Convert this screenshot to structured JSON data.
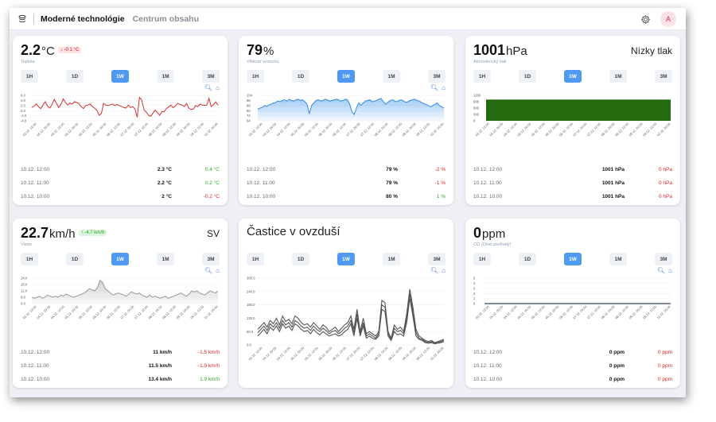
{
  "header": {
    "app_title": "Moderné technológie",
    "subtitle": "Centrum obsahu",
    "avatar_letter": "A"
  },
  "ranges": [
    "1H",
    "1D",
    "1W",
    "1M",
    "3M"
  ],
  "active_range": "1W",
  "x_ticks": [
    "03.12. 12:00",
    "04.12. 00:00",
    "04.12. 12:00",
    "05.12. 00:00",
    "05.12. 12:00",
    "06.12. 00:00",
    "06.12. 12:00",
    "07.12. 00:00",
    "07.12. 12:00",
    "08.12. 00:00",
    "08.12. 12:00",
    "09.12. 00:00",
    "09.12. 12:00",
    "10.12. 00:00"
  ],
  "cards": [
    {
      "value": "2.2",
      "unit": "°C",
      "badge": "↓ -0.1 °C",
      "badge_type": "red",
      "label": "Teplota",
      "rows": [
        {
          "time": "10.12. 12:00",
          "value": "2.3 °C",
          "delta": "0.4 °C",
          "sign": "pos"
        },
        {
          "time": "10.12. 11:00",
          "value": "2.2 °C",
          "delta": "0.2 °C",
          "sign": "pos"
        },
        {
          "time": "10.12. 10:00",
          "value": "2 °C",
          "delta": "-0.2 °C",
          "sign": "neg"
        }
      ]
    },
    {
      "value": "79",
      "unit": "%",
      "label": "Vlhkosť vzduchu",
      "rows": [
        {
          "time": "10.12. 12:00",
          "value": "79 %",
          "delta": "-2 %",
          "sign": "neg"
        },
        {
          "time": "10.12. 11:00",
          "value": "79 %",
          "delta": "-1 %",
          "sign": "neg"
        },
        {
          "time": "10.12. 10:00",
          "value": "80 %",
          "delta": "1 %",
          "sign": "pos"
        }
      ]
    },
    {
      "value": "1001",
      "unit": "hPa",
      "label": "Atmosferický tlak",
      "right_label": "Nízky tlak",
      "rows": [
        {
          "time": "10.12. 12:00",
          "value": "1001 hPa",
          "delta": "0 hPa",
          "sign": "neg"
        },
        {
          "time": "10.12. 11:00",
          "value": "1001 hPa",
          "delta": "0 hPa",
          "sign": "neg"
        },
        {
          "time": "10.12. 10:00",
          "value": "1001 hPa",
          "delta": "0 hPa",
          "sign": "neg"
        }
      ]
    },
    {
      "value": "22.7",
      "unit": "km/h",
      "badge": "↑ -4.7 km/h",
      "badge_type": "green",
      "label": "Vietor",
      "right_label": "SV",
      "rows": [
        {
          "time": "10.12. 12:00",
          "value": "11 km/h",
          "delta": "-1.5 km/h",
          "sign": "neg"
        },
        {
          "time": "10.12. 11:00",
          "value": "11.5 km/h",
          "delta": "-1.9 km/h",
          "sign": "neg"
        },
        {
          "time": "10.12. 10:00",
          "value": "13.4 km/h",
          "delta": "1.9 km/h",
          "sign": "pos"
        }
      ]
    },
    {
      "title": "Častice v ovzduší"
    },
    {
      "value": "0",
      "unit": "ppm",
      "label": "CO (Oxid uhoľnatý)",
      "rows": [
        {
          "time": "10.12. 12:00",
          "value": "0 ppm",
          "delta": "0 ppm",
          "sign": "neg"
        },
        {
          "time": "10.12. 11:00",
          "value": "0 ppm",
          "delta": "0 ppm",
          "sign": "neg"
        },
        {
          "time": "10.12. 10:00",
          "value": "0 ppm",
          "delta": "0 ppm",
          "sign": "neg"
        }
      ]
    }
  ],
  "chart_data": [
    {
      "type": "line",
      "name": "temperature",
      "color": "#d63030",
      "yticks": [
        "6.0",
        "4.0",
        "2.0",
        "0.0",
        "-2.0",
        "-4.0"
      ],
      "ylim": [
        -4,
        6
      ],
      "values": [
        1.2,
        1.8,
        2.6,
        1.5,
        0.8,
        2.2,
        3.5,
        1.8,
        1.0,
        2.4,
        4.4,
        2.8,
        1.2,
        2.5,
        4.6,
        3.2,
        2.2,
        3.0,
        2.6,
        3.5,
        3.2,
        2.8,
        1.6,
        0.8,
        2.0,
        2.2,
        2.6,
        1.6,
        1.0,
        0.2,
        -1.8,
        -1.2,
        2.8,
        2.2,
        2.0,
        2.3,
        2.6,
        2.0,
        2.4,
        2.0,
        1.6,
        1.2,
        1.0,
        2.2,
        1.2,
        1.6,
        0.6,
        -2.6,
        5.2,
        4.2,
        0.4,
        -0.6,
        -1.8,
        -2.2,
        -1.0,
        0.2,
        -0.8,
        -1.8,
        -0.4,
        -0.4,
        0.8,
        1.4,
        2.2,
        1.2,
        1.8,
        2.8,
        2.4,
        2.2,
        1.6,
        2.8,
        1.0,
        0.4,
        0.6,
        2.0,
        1.6,
        2.6,
        2.2,
        2.0,
        2.2,
        4.8,
        1.6,
        2.4,
        3.4,
        2.2
      ]
    },
    {
      "type": "area",
      "name": "humidity",
      "color": "#2f8be8",
      "yticks": [
        "104",
        "96",
        "88",
        "80",
        "72",
        "64"
      ],
      "ylim": [
        64,
        104
      ],
      "values": [
        82,
        84,
        85,
        88,
        87,
        89,
        90,
        92,
        93,
        95,
        94,
        96,
        97,
        95,
        98,
        96,
        95,
        97,
        98,
        96,
        97,
        94,
        90,
        75,
        88,
        92,
        96,
        97,
        95,
        96,
        98,
        97,
        95,
        96,
        97,
        98,
        97,
        95,
        96,
        98,
        97,
        90,
        78,
        74,
        84,
        92,
        88,
        92,
        95,
        96,
        97,
        94,
        95,
        96,
        98,
        99,
        94,
        90,
        93,
        96,
        97,
        95,
        94,
        96,
        97,
        95,
        93,
        94,
        96,
        97,
        98,
        96,
        95,
        93,
        91,
        90,
        88,
        86,
        88,
        90,
        92,
        88,
        86,
        84
      ]
    },
    {
      "type": "bar",
      "name": "pressure",
      "color": "#236b0e",
      "yticks": [
        "1200",
        "900",
        "600",
        "300",
        "0"
      ],
      "ylim": [
        0,
        1200
      ],
      "value": 1001
    },
    {
      "type": "area",
      "name": "wind",
      "color": "#999999",
      "yticks": [
        "24.0",
        "18.0",
        "12.0",
        "6.0",
        "0.0"
      ],
      "ylim": [
        0,
        24
      ],
      "values": [
        6,
        5,
        6,
        7,
        5,
        6,
        8,
        7,
        6,
        7,
        6,
        8,
        7,
        9,
        8,
        7,
        6,
        7,
        8,
        9,
        10,
        12,
        14,
        13,
        12,
        15,
        22,
        20,
        14,
        12,
        10,
        8,
        9,
        10,
        9,
        8,
        7,
        9,
        11,
        10,
        9,
        10,
        8,
        7,
        6,
        8,
        6,
        7,
        6,
        5,
        6,
        7,
        5,
        6,
        7,
        8,
        9,
        10,
        8,
        7,
        9,
        12,
        11,
        12,
        10,
        9,
        8,
        10,
        12,
        11,
        10,
        12
      ]
    },
    {
      "type": "line",
      "name": "particles",
      "color": "#555555",
      "yticks": [
        "300.0",
        "240.0",
        "180.0",
        "120.0",
        "60.0",
        "0.0"
      ],
      "ylim": [
        0,
        300
      ],
      "series": [
        {
          "values": [
            70,
            85,
            100,
            80,
            110,
            95,
            120,
            90,
            130,
            105,
            115,
            95,
            130,
            120,
            100,
            90,
            95,
            80,
            100,
            85,
            70,
            90,
            80,
            60,
            70,
            80,
            60,
            75,
            90,
            100,
            130,
            70,
            160,
            60,
            120,
            50,
            60,
            50,
            40,
            60,
            200,
            190,
            60,
            30,
            90,
            70,
            80,
            60,
            140,
            250,
            170,
            70,
            40,
            30,
            20,
            15,
            20,
            10,
            15,
            20,
            25
          ]
        },
        {
          "values": [
            55,
            70,
            85,
            65,
            95,
            80,
            100,
            75,
            110,
            90,
            100,
            80,
            110,
            100,
            85,
            75,
            80,
            65,
            85,
            70,
            60,
            75,
            65,
            50,
            60,
            65,
            50,
            60,
            75,
            85,
            110,
            55,
            140,
            50,
            100,
            40,
            50,
            40,
            30,
            50,
            180,
            170,
            50,
            25,
            75,
            60,
            65,
            50,
            120,
            230,
            150,
            55,
            30,
            25,
            15,
            10,
            15,
            8,
            10,
            15,
            20
          ]
        },
        {
          "values": [
            40,
            55,
            70,
            50,
            80,
            65,
            85,
            60,
            95,
            75,
            85,
            65,
            95,
            85,
            70,
            60,
            65,
            50,
            70,
            55,
            45,
            60,
            50,
            40,
            45,
            50,
            40,
            45,
            60,
            70,
            95,
            40,
            120,
            40,
            85,
            30,
            40,
            30,
            25,
            40,
            160,
            150,
            40,
            20,
            60,
            45,
            50,
            40,
            100,
            210,
            130,
            40,
            25,
            20,
            10,
            8,
            10,
            5,
            8,
            10,
            15
          ]
        }
      ]
    },
    {
      "type": "line",
      "name": "co",
      "color": "#334466",
      "yticks": [
        "5",
        "4",
        "3",
        "2",
        "1",
        "0"
      ],
      "ylim": [
        0,
        5
      ],
      "value": 0
    }
  ]
}
